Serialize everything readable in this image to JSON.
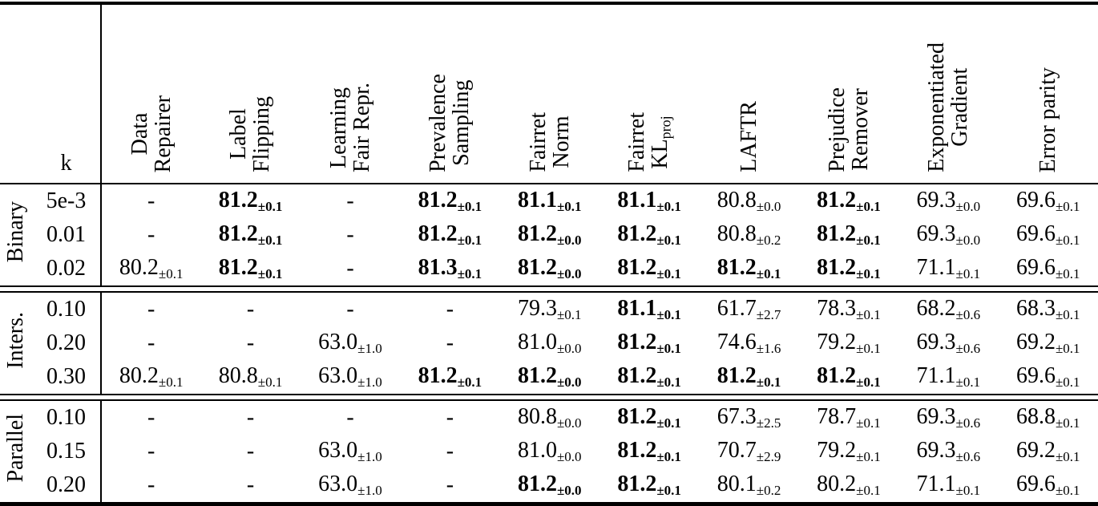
{
  "table": {
    "k_header": "k",
    "columns": [
      {
        "name": "data-repairer",
        "lines": [
          "Data",
          "Repairer"
        ]
      },
      {
        "name": "label-flipping",
        "lines": [
          "Label",
          "Flipping"
        ]
      },
      {
        "name": "learning-fair-repr",
        "lines": [
          "Learning",
          "Fair Repr."
        ]
      },
      {
        "name": "prevalence-sampling",
        "lines": [
          "Prevalence",
          "Sampling"
        ]
      },
      {
        "name": "fairret-norm",
        "lines": [
          "Fairret",
          "Norm"
        ]
      },
      {
        "name": "fairret-kl-proj",
        "lines": [
          "Fairret",
          "KL"
        ],
        "subscript": "proj"
      },
      {
        "name": "laftr",
        "lines": [
          "LAFTR"
        ]
      },
      {
        "name": "prejudice-remover",
        "lines": [
          "Prejudice",
          "Remover"
        ]
      },
      {
        "name": "exponentiated-gradient",
        "lines": [
          "Exponentiated",
          "Gradient"
        ]
      },
      {
        "name": "error-parity",
        "lines": [
          "Error parity"
        ]
      }
    ],
    "groups": [
      {
        "label": "Binary",
        "rows": [
          {
            "k": "5e-3",
            "cells": [
              {
                "v": "-"
              },
              {
                "v": "81.2",
                "e": "±0.1",
                "b": true
              },
              {
                "v": "-"
              },
              {
                "v": "81.2",
                "e": "±0.1",
                "b": true
              },
              {
                "v": "81.1",
                "e": "±0.1",
                "b": true
              },
              {
                "v": "81.1",
                "e": "±0.1",
                "b": true
              },
              {
                "v": "80.8",
                "e": "±0.0"
              },
              {
                "v": "81.2",
                "e": "±0.1",
                "b": true
              },
              {
                "v": "69.3",
                "e": "±0.0"
              },
              {
                "v": "69.6",
                "e": "±0.1"
              }
            ]
          },
          {
            "k": "0.01",
            "cells": [
              {
                "v": "-"
              },
              {
                "v": "81.2",
                "e": "±0.1",
                "b": true
              },
              {
                "v": "-"
              },
              {
                "v": "81.2",
                "e": "±0.1",
                "b": true
              },
              {
                "v": "81.2",
                "e": "±0.0",
                "b": true
              },
              {
                "v": "81.2",
                "e": "±0.1",
                "b": true
              },
              {
                "v": "80.8",
                "e": "±0.2"
              },
              {
                "v": "81.2",
                "e": "±0.1",
                "b": true
              },
              {
                "v": "69.3",
                "e": "±0.0"
              },
              {
                "v": "69.6",
                "e": "±0.1"
              }
            ]
          },
          {
            "k": "0.02",
            "cells": [
              {
                "v": "80.2",
                "e": "±0.1"
              },
              {
                "v": "81.2",
                "e": "±0.1",
                "b": true
              },
              {
                "v": "-"
              },
              {
                "v": "81.3",
                "e": "±0.1",
                "b": true
              },
              {
                "v": "81.2",
                "e": "±0.0",
                "b": true
              },
              {
                "v": "81.2",
                "e": "±0.1",
                "b": true
              },
              {
                "v": "81.2",
                "e": "±0.1",
                "b": true
              },
              {
                "v": "81.2",
                "e": "±0.1",
                "b": true
              },
              {
                "v": "71.1",
                "e": "±0.1"
              },
              {
                "v": "69.6",
                "e": "±0.1"
              }
            ]
          }
        ]
      },
      {
        "label": "Inters.",
        "rows": [
          {
            "k": "0.10",
            "cells": [
              {
                "v": "-"
              },
              {
                "v": "-"
              },
              {
                "v": "-"
              },
              {
                "v": "-"
              },
              {
                "v": "79.3",
                "e": "±0.1"
              },
              {
                "v": "81.1",
                "e": "±0.1",
                "b": true
              },
              {
                "v": "61.7",
                "e": "±2.7"
              },
              {
                "v": "78.3",
                "e": "±0.1"
              },
              {
                "v": "68.2",
                "e": "±0.6"
              },
              {
                "v": "68.3",
                "e": "±0.1"
              }
            ]
          },
          {
            "k": "0.20",
            "cells": [
              {
                "v": "-"
              },
              {
                "v": "-"
              },
              {
                "v": "63.0",
                "e": "±1.0"
              },
              {
                "v": "-"
              },
              {
                "v": "81.0",
                "e": "±0.0"
              },
              {
                "v": "81.2",
                "e": "±0.1",
                "b": true
              },
              {
                "v": "74.6",
                "e": "±1.6"
              },
              {
                "v": "79.2",
                "e": "±0.1"
              },
              {
                "v": "69.3",
                "e": "±0.6"
              },
              {
                "v": "69.2",
                "e": "±0.1"
              }
            ]
          },
          {
            "k": "0.30",
            "cells": [
              {
                "v": "80.2",
                "e": "±0.1"
              },
              {
                "v": "80.8",
                "e": "±0.1"
              },
              {
                "v": "63.0",
                "e": "±1.0"
              },
              {
                "v": "81.2",
                "e": "±0.1",
                "b": true
              },
              {
                "v": "81.2",
                "e": "±0.0",
                "b": true
              },
              {
                "v": "81.2",
                "e": "±0.1",
                "b": true
              },
              {
                "v": "81.2",
                "e": "±0.1",
                "b": true
              },
              {
                "v": "81.2",
                "e": "±0.1",
                "b": true
              },
              {
                "v": "71.1",
                "e": "±0.1"
              },
              {
                "v": "69.6",
                "e": "±0.1"
              }
            ]
          }
        ]
      },
      {
        "label": "Parallel",
        "rows": [
          {
            "k": "0.10",
            "cells": [
              {
                "v": "-"
              },
              {
                "v": "-"
              },
              {
                "v": "-"
              },
              {
                "v": "-"
              },
              {
                "v": "80.8",
                "e": "±0.0"
              },
              {
                "v": "81.2",
                "e": "±0.1",
                "b": true
              },
              {
                "v": "67.3",
                "e": "±2.5"
              },
              {
                "v": "78.7",
                "e": "±0.1"
              },
              {
                "v": "69.3",
                "e": "±0.6"
              },
              {
                "v": "68.8",
                "e": "±0.1"
              }
            ]
          },
          {
            "k": "0.15",
            "cells": [
              {
                "v": "-"
              },
              {
                "v": "-"
              },
              {
                "v": "63.0",
                "e": "±1.0"
              },
              {
                "v": "-"
              },
              {
                "v": "81.0",
                "e": "±0.0"
              },
              {
                "v": "81.2",
                "e": "±0.1",
                "b": true
              },
              {
                "v": "70.7",
                "e": "±2.9"
              },
              {
                "v": "79.2",
                "e": "±0.1"
              },
              {
                "v": "69.3",
                "e": "±0.6"
              },
              {
                "v": "69.2",
                "e": "±0.1"
              }
            ]
          },
          {
            "k": "0.20",
            "cells": [
              {
                "v": "-"
              },
              {
                "v": "-"
              },
              {
                "v": "63.0",
                "e": "±1.0"
              },
              {
                "v": "-"
              },
              {
                "v": "81.2",
                "e": "±0.0",
                "b": true
              },
              {
                "v": "81.2",
                "e": "±0.1",
                "b": true
              },
              {
                "v": "80.1",
                "e": "±0.2"
              },
              {
                "v": "80.2",
                "e": "±0.1"
              },
              {
                "v": "71.1",
                "e": "±0.1"
              },
              {
                "v": "69.6",
                "e": "±0.1"
              }
            ]
          }
        ]
      }
    ]
  },
  "colors": {
    "text": "#000000",
    "background": "#ffffff",
    "rule": "#000000"
  }
}
